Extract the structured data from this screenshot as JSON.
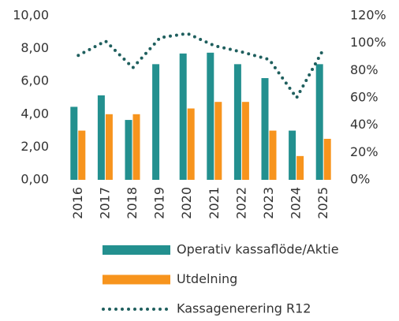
{
  "chart_data": {
    "type": "bar_line",
    "categories": [
      "2016",
      "2017",
      "2018",
      "2019",
      "2020",
      "2021",
      "2022",
      "2023",
      "2024",
      "2025"
    ],
    "series": [
      {
        "name": "Operativ kassaflöde/Aktie",
        "color": "#23908f",
        "type": "bar",
        "values": [
          4.45,
          5.15,
          3.65,
          7.05,
          7.7,
          7.75,
          7.05,
          6.2,
          3.0,
          7.05
        ]
      },
      {
        "name": "Utdelning",
        "color": "#f7941d",
        "type": "bar",
        "values": [
          3.0,
          4.0,
          4.0,
          0,
          4.35,
          4.75,
          4.75,
          3.0,
          1.45,
          2.5
        ]
      },
      {
        "name": "Kassagenerering R12",
        "color": "#1f5f5e",
        "type": "line",
        "axis": "y2",
        "values": [
          91,
          101.5,
          82,
          104,
          107,
          98,
          93.5,
          88,
          60,
          96
        ]
      }
    ],
    "ylim": [
      0,
      10
    ],
    "yticks": [
      {
        "value": 0,
        "label": "0,00"
      },
      {
        "value": 2,
        "label": "2,00"
      },
      {
        "value": 4,
        "label": "4,00"
      },
      {
        "value": 6,
        "label": "6,00"
      },
      {
        "value": 8,
        "label": "8,00"
      },
      {
        "value": 10,
        "label": "10,00"
      }
    ],
    "y2lim": [
      0,
      120
    ],
    "y2ticks": [
      {
        "value": 0,
        "label": "0%"
      },
      {
        "value": 20,
        "label": "20%"
      },
      {
        "value": 40,
        "label": "40%"
      },
      {
        "value": 60,
        "label": "60%"
      },
      {
        "value": 80,
        "label": "80%"
      },
      {
        "value": 100,
        "label": "100%"
      },
      {
        "value": 120,
        "label": "120%"
      }
    ],
    "legend": "bottom",
    "grid": false
  }
}
